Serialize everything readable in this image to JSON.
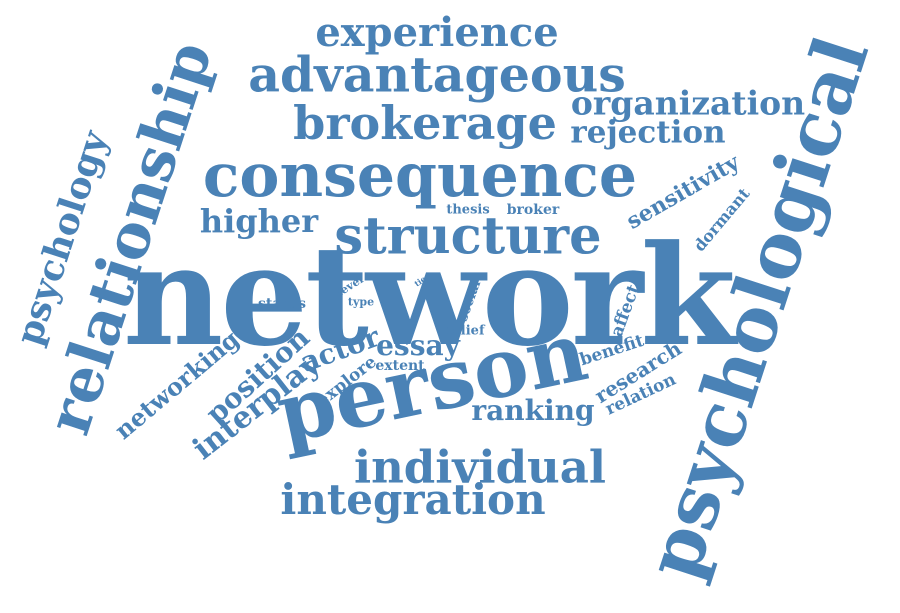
{
  "color": "#4a82b6",
  "words": [
    "network",
    "psychological",
    "person",
    "consequence",
    "structure",
    "relationship",
    "advantageous",
    "brokerage",
    "individual",
    "integration",
    "experience",
    "psychology",
    "organization",
    "rejection",
    "higher",
    "essay",
    "ranking",
    "position",
    "interplay",
    "actor",
    "networking",
    "sensitivity",
    "dormant",
    "research",
    "relation",
    "benefit",
    "affect",
    "thesis",
    "broker",
    "status",
    "level",
    "type",
    "tie",
    "social",
    "belief",
    "explore",
    "extent"
  ]
}
